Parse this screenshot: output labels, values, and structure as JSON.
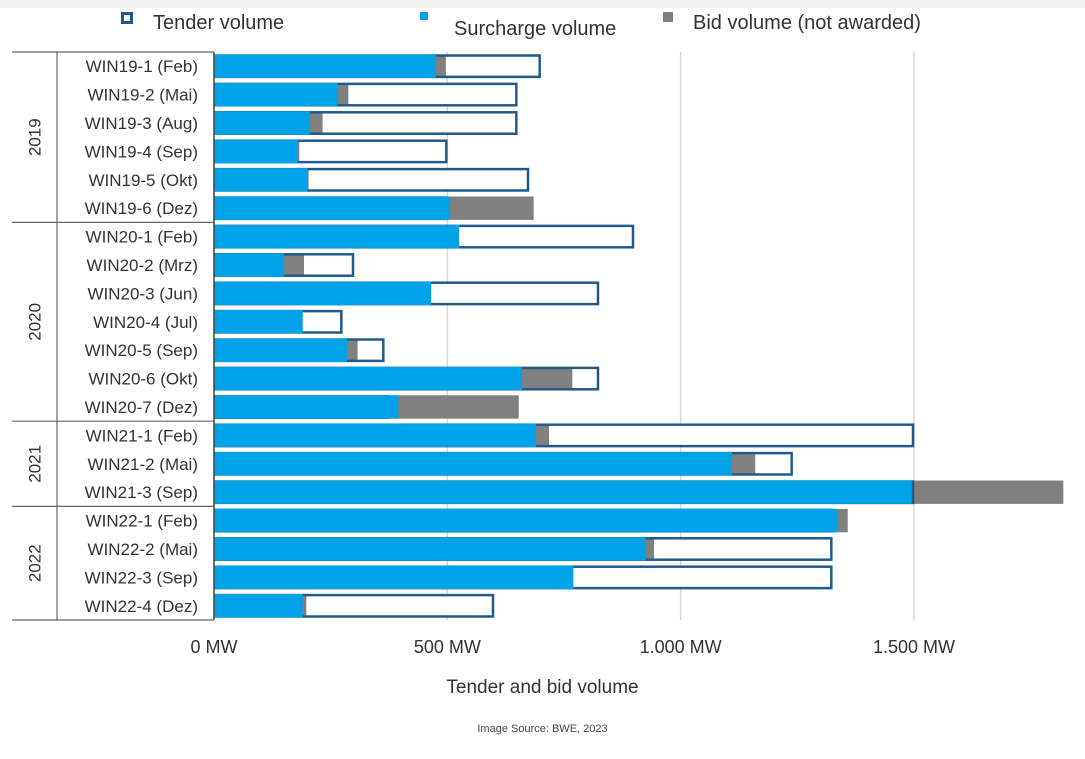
{
  "legend": {
    "tender": "Tender volume",
    "surcharge": "Surcharge volume",
    "bid": "Bid volume (not awarded)"
  },
  "colors": {
    "tender_border": "#1f5a8c",
    "surcharge": "#00a2e8",
    "bid": "#808080",
    "grid": "#d9d9d9",
    "axis": "#404040"
  },
  "source": "Image Source: BWE, 2023",
  "chart_data": {
    "type": "bar",
    "orientation": "horizontal",
    "xlabel": "Tender and bid volume",
    "xlim": [
      0,
      1830
    ],
    "xticks": [
      0,
      500,
      1000,
      1500
    ],
    "xtick_labels": [
      "0 MW",
      "500 MW",
      "1.000 MW",
      "1.500 MW"
    ],
    "grid": true,
    "legend_position": "top",
    "groups": [
      {
        "label": "2019",
        "count": 6
      },
      {
        "label": "2020",
        "count": 7
      },
      {
        "label": "2021",
        "count": 3
      },
      {
        "label": "2022",
        "count": 4
      }
    ],
    "categories": [
      "WIN19-1 (Feb)",
      "WIN19-2 (Mai)",
      "WIN19-3 (Aug)",
      "WIN19-4 (Sep)",
      "WIN19-5 (Okt)",
      "WIN19-6 (Dez)",
      "WIN20-1 (Feb)",
      "WIN20-2 (Mrz)",
      "WIN20-3 (Jun)",
      "WIN20-4 (Jul)",
      "WIN20-5 (Sep)",
      "WIN20-6 (Okt)",
      "WIN20-7 (Dez)",
      "WIN21-1 (Feb)",
      "WIN21-2 (Mai)",
      "WIN21-3 (Sep)",
      "WIN22-1 (Feb)",
      "WIN22-2 (Mai)",
      "WIN22-3 (Sep)",
      "WIN22-4 (Dez)"
    ],
    "series": [
      {
        "name": "Tender volume",
        "values": [
          700,
          650,
          650,
          500,
          675,
          500,
          900,
          300,
          825,
          275,
          365,
          825,
          375,
          1500,
          1240,
          1500,
          1325,
          1325,
          1325,
          600
        ]
      },
      {
        "name": "Surcharge volume",
        "values": [
          475,
          265,
          205,
          180,
          200,
          505,
          525,
          150,
          465,
          190,
          285,
          660,
          395,
          690,
          1110,
          1495,
          1335,
          925,
          770,
          190
        ]
      },
      {
        "name": "Bid volume (not awarded)",
        "values": [
          497,
          288,
          233,
          183,
          203,
          685,
          525,
          193,
          465,
          190,
          308,
          768,
          653,
          718,
          1160,
          1820,
          1358,
          943,
          770,
          198
        ]
      }
    ]
  }
}
